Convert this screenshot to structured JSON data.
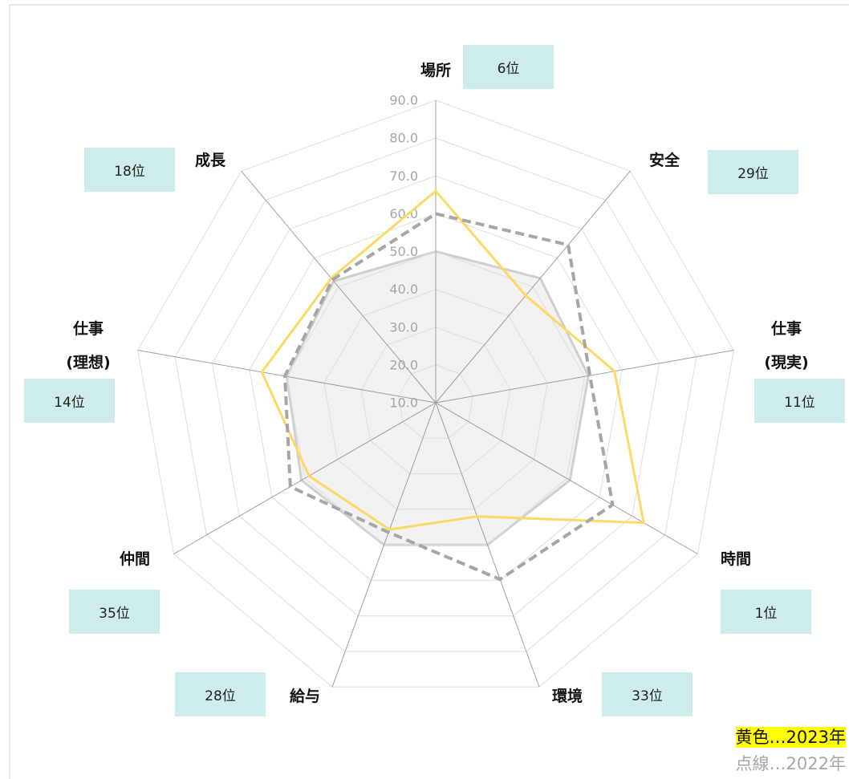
{
  "chart_data": {
    "type": "radar",
    "categories": [
      "場所",
      "安全",
      "仕事\n(現実)",
      "時間",
      "環境",
      "給与",
      "仲間",
      "仕事\n(理想)",
      "成長"
    ],
    "rank_labels": [
      "6位",
      "29位",
      "11位",
      "1位",
      "33位",
      "28位",
      "35位",
      "14位",
      "18位"
    ],
    "ylim": [
      10,
      90
    ],
    "yticks": [
      {
        "value": 10,
        "label": "10.0"
      },
      {
        "value": 20,
        "label": "20.0"
      },
      {
        "value": 30,
        "label": "30.0"
      },
      {
        "value": 40,
        "label": "40.0"
      },
      {
        "value": 50,
        "label": "50.0"
      },
      {
        "value": 60,
        "label": "60.0"
      },
      {
        "value": 70,
        "label": "70.0"
      },
      {
        "value": 80,
        "label": "80.0"
      },
      {
        "value": 90,
        "label": "90.0"
      }
    ],
    "grid": true,
    "series": [
      {
        "color": "#d0d0d0",
        "fill": "#f2f2f2",
        "values": [
          50,
          53,
          51,
          51,
          50,
          50,
          51,
          50,
          52
        ]
      },
      {
        "name": "黄色…2023年",
        "color": "#ffd966",
        "highlight": "#ffff00",
        "values": [
          66,
          47,
          58,
          73.5,
          42,
          45.7,
          48.7,
          56.7,
          53
        ]
      },
      {
        "name": "点線…2022年",
        "color": "#a6a6a6",
        "dash": true,
        "values": [
          60,
          64.5,
          51.4,
          64,
          59.7,
          46.5,
          54.4,
          50.5,
          52.5
        ]
      }
    ]
  }
}
